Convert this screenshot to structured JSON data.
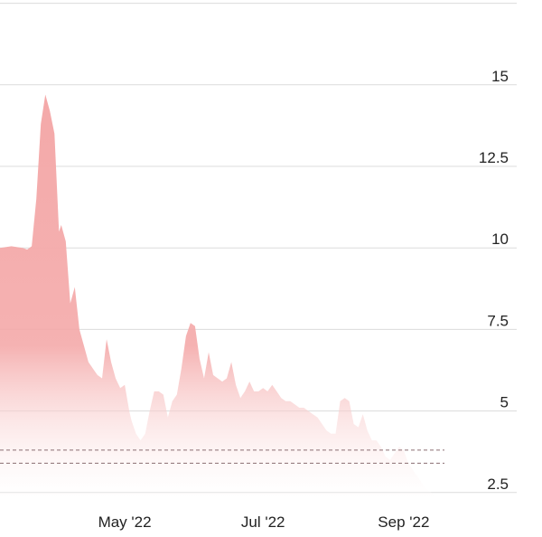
{
  "chart_data": {
    "type": "area",
    "title": "",
    "xlabel": "",
    "ylabel": "",
    "ylim": [
      2.3,
      17.6
    ],
    "xlim": [
      "2022-03-07",
      "2022-11-01"
    ],
    "y_ticks": [
      2.5,
      5,
      7.5,
      10,
      12.5,
      15
    ],
    "y_tick_labels": [
      "2.5",
      "5",
      "7.5",
      "10",
      "12.5",
      "15"
    ],
    "x_ticks": [
      "2022-05-01",
      "2022-07-01",
      "2022-09-01"
    ],
    "x_tick_labels": [
      "May '22",
      "Jul '22",
      "Sep '22"
    ],
    "grid": true,
    "fill_color": "#f4a9a9",
    "fill_fade_color": "#ffffff",
    "reference_lines": [
      {
        "value": 3.8,
        "style": "dashed",
        "color": "#8a6e72"
      },
      {
        "value": 3.4,
        "style": "dashed",
        "color": "#8a6e72"
      }
    ],
    "series": [
      {
        "x": [
          "2022-03-07",
          "2022-03-12",
          "2022-03-17",
          "2022-03-19",
          "2022-03-21",
          "2022-03-23",
          "2022-03-25",
          "2022-03-27",
          "2022-03-29",
          "2022-03-31",
          "2022-04-02",
          "2022-04-03",
          "2022-04-05",
          "2022-04-07",
          "2022-04-09",
          "2022-04-11",
          "2022-04-13",
          "2022-04-15",
          "2022-04-17",
          "2022-04-19",
          "2022-04-21",
          "2022-04-23",
          "2022-04-25",
          "2022-04-27",
          "2022-04-29",
          "2022-05-01",
          "2022-05-03",
          "2022-05-04",
          "2022-05-06",
          "2022-05-08",
          "2022-05-10",
          "2022-05-12",
          "2022-05-14",
          "2022-05-16",
          "2022-05-18",
          "2022-05-20",
          "2022-05-22",
          "2022-05-24",
          "2022-05-26",
          "2022-05-28",
          "2022-05-30",
          "2022-06-01",
          "2022-06-03",
          "2022-06-05",
          "2022-06-07",
          "2022-06-09",
          "2022-06-11",
          "2022-06-13",
          "2022-06-15",
          "2022-06-17",
          "2022-06-19",
          "2022-06-21",
          "2022-06-23",
          "2022-06-25",
          "2022-06-27",
          "2022-06-29",
          "2022-07-01",
          "2022-07-03",
          "2022-07-05",
          "2022-07-07",
          "2022-07-09",
          "2022-07-11",
          "2022-07-13",
          "2022-07-15",
          "2022-07-17",
          "2022-07-19",
          "2022-07-21",
          "2022-07-23",
          "2022-07-25",
          "2022-07-27",
          "2022-07-29",
          "2022-07-31",
          "2022-08-02",
          "2022-08-04",
          "2022-08-06",
          "2022-08-08",
          "2022-08-10",
          "2022-08-12",
          "2022-08-14",
          "2022-08-16",
          "2022-08-18",
          "2022-08-20",
          "2022-08-22",
          "2022-08-24",
          "2022-08-26",
          "2022-08-28",
          "2022-08-30",
          "2022-09-01",
          "2022-09-03",
          "2022-09-05",
          "2022-09-07",
          "2022-09-09",
          "2022-09-11",
          "2022-09-13",
          "2022-09-15",
          "2022-09-17",
          "2022-09-19",
          "2022-09-21",
          "2022-09-23",
          "2022-09-25",
          "2022-09-27",
          "2022-09-29",
          "2022-10-01",
          "2022-10-03",
          "2022-10-05",
          "2022-10-07",
          "2022-10-09",
          "2022-10-11",
          "2022-10-13"
        ],
        "values": [
          10.0,
          10.05,
          10.0,
          9.95,
          10.05,
          11.5,
          13.8,
          14.7,
          14.2,
          13.5,
          10.5,
          10.7,
          10.2,
          8.3,
          8.8,
          7.5,
          7.0,
          6.5,
          6.3,
          6.1,
          6.0,
          7.2,
          6.5,
          6.0,
          5.7,
          5.8,
          5.0,
          4.7,
          4.3,
          4.1,
          4.3,
          5.0,
          5.6,
          5.6,
          5.5,
          4.8,
          5.3,
          5.5,
          6.3,
          7.3,
          7.7,
          7.6,
          6.6,
          6.0,
          6.8,
          6.1,
          6.0,
          5.9,
          6.0,
          6.5,
          5.8,
          5.4,
          5.6,
          5.9,
          5.6,
          5.6,
          5.7,
          5.6,
          5.8,
          5.6,
          5.4,
          5.3,
          5.3,
          5.2,
          5.1,
          5.1,
          5.0,
          4.9,
          4.8,
          4.6,
          4.4,
          4.3,
          4.3,
          5.3,
          5.4,
          5.3,
          4.6,
          4.5,
          4.9,
          4.4,
          4.1,
          4.1,
          3.9,
          3.6,
          3.5,
          3.7,
          3.9,
          3.8,
          3.4,
          3.2,
          3.0,
          2.8,
          2.6,
          2.5,
          2.4,
          2.4,
          2.4,
          2.4,
          2.4,
          2.4,
          2.4,
          2.4,
          2.4,
          2.4,
          2.4,
          2.4,
          2.4,
          2.4,
          2.4
        ]
      }
    ]
  }
}
